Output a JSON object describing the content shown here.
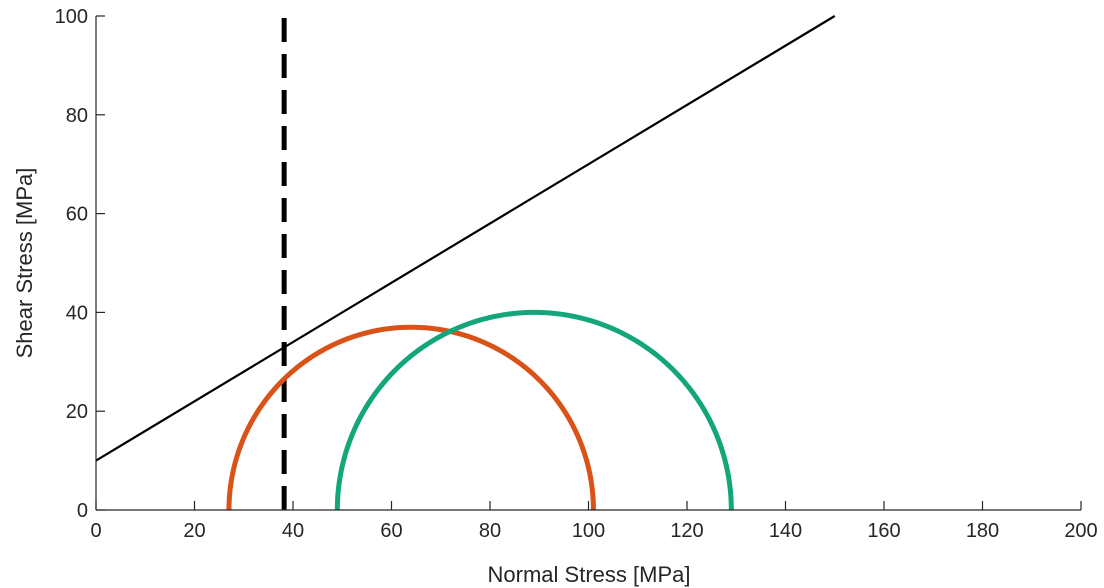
{
  "chart_data": {
    "type": "line",
    "title": "",
    "xlabel": "Normal Stress [MPa]",
    "ylabel": "Shear Stress [MPa]",
    "xlim": [
      0,
      200
    ],
    "ylim": [
      0,
      100
    ],
    "xticks": [
      0,
      20,
      40,
      60,
      80,
      100,
      120,
      140,
      160,
      180,
      200
    ],
    "yticks": [
      0,
      20,
      40,
      60,
      80,
      100
    ],
    "grid": false,
    "legend": "none",
    "series": [
      {
        "kind": "line",
        "style": "solid",
        "color": "#000000",
        "x": [
          0,
          150
        ],
        "y": [
          10,
          100
        ]
      },
      {
        "kind": "vertical-line",
        "style": "dashed",
        "color": "#000000",
        "x": 38.2,
        "y": [
          0,
          100
        ]
      },
      {
        "kind": "half-circle",
        "color": "#D95319",
        "sigma_min": 27,
        "sigma_max": 101,
        "center": 64,
        "radius": 37
      },
      {
        "kind": "half-circle",
        "color": "#13A67A",
        "sigma_min": 49,
        "sigma_max": 129,
        "center": 89,
        "radius": 40
      }
    ]
  }
}
